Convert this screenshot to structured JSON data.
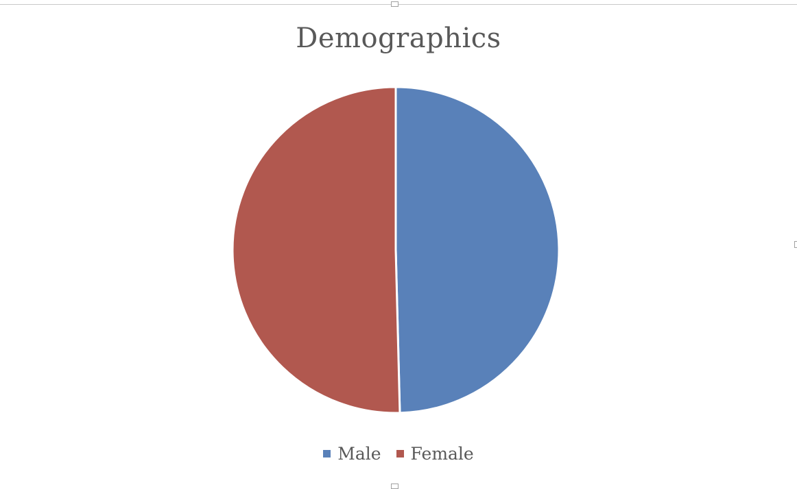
{
  "chart_data": {
    "type": "pie",
    "title": "Demographics",
    "categories": [
      "Male",
      "Female"
    ],
    "values": [
      49.6,
      50.4
    ],
    "colors": [
      "#5981b9",
      "#b1584f"
    ],
    "legend_position": "bottom"
  }
}
